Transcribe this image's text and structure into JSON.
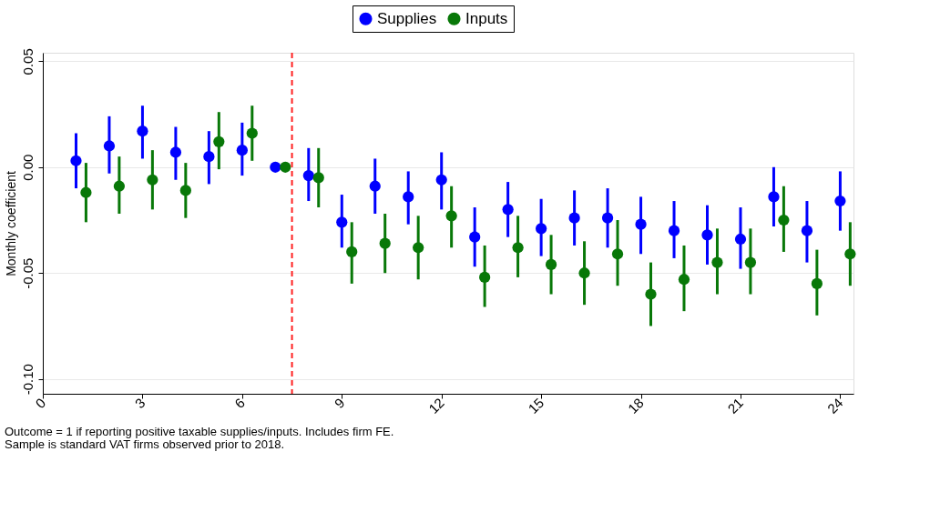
{
  "chart_data": {
    "type": "scatter",
    "ylabel": "Monthly coefficient",
    "xlim": [
      0,
      24.4
    ],
    "xticks": [
      0,
      3,
      6,
      9,
      12,
      15,
      18,
      21,
      24
    ],
    "ylim": [
      -0.107,
      0.054
    ],
    "yticks": [
      {
        "value": -0.1,
        "label": "-0.10"
      },
      {
        "value": -0.05,
        "label": "-0.05"
      },
      {
        "value": 0,
        "label": "0.00"
      },
      {
        "value": 0.05,
        "label": "0.05"
      }
    ],
    "grid": "y",
    "legend": "top",
    "marker": "circle",
    "ref_lines": [
      {
        "axis": "x",
        "value": 7.5,
        "color": "#ff2020",
        "line_style": "dashed"
      }
    ],
    "annotations": [
      "Outcome = 1 if reporting positive taxable supplies/inputs. Includes firm FE.",
      "Sample is standard VAT firms observed prior to 2018."
    ],
    "series": [
      {
        "name": "Supplies",
        "color": "#0000ff",
        "x": [
          1,
          2,
          3,
          4,
          5,
          6,
          7,
          8,
          9,
          10,
          11,
          12,
          13,
          14,
          15,
          16,
          17,
          18,
          19,
          20,
          21,
          22,
          23,
          24
        ],
        "values": [
          0.003,
          0.01,
          0.017,
          0.007,
          0.005,
          0.008,
          0,
          -0.004,
          -0.026,
          -0.009,
          -0.014,
          -0.006,
          -0.033,
          -0.02,
          -0.029,
          -0.024,
          -0.024,
          -0.027,
          -0.03,
          -0.032,
          -0.034,
          -0.014,
          -0.03,
          -0.016
        ],
        "errors": [
          [
            -0.01,
            0.016
          ],
          [
            -0.003,
            0.024
          ],
          [
            0.004,
            0.029
          ],
          [
            -0.006,
            0.019
          ],
          [
            -0.008,
            0.017
          ],
          [
            -0.004,
            0.021
          ],
          null,
          [
            -0.016,
            0.009
          ],
          [
            -0.038,
            -0.013
          ],
          [
            -0.022,
            0.004
          ],
          [
            -0.027,
            -0.002
          ],
          [
            -0.02,
            0.007
          ],
          [
            -0.047,
            -0.019
          ],
          [
            -0.033,
            -0.007
          ],
          [
            -0.042,
            -0.015
          ],
          [
            -0.037,
            -0.011
          ],
          [
            -0.038,
            -0.01
          ],
          [
            -0.041,
            -0.014
          ],
          [
            -0.043,
            -0.016
          ],
          [
            -0.046,
            -0.018
          ],
          [
            -0.048,
            -0.019
          ],
          [
            -0.028,
            0.0
          ],
          [
            -0.045,
            -0.016
          ],
          [
            -0.03,
            -0.002
          ]
        ]
      },
      {
        "name": "Inputs",
        "color": "#087808",
        "x": [
          1.3,
          2.3,
          3.3,
          4.3,
          5.3,
          6.3,
          7.3,
          8.3,
          9.3,
          10.3,
          11.3,
          12.3,
          13.3,
          14.3,
          15.3,
          16.3,
          17.3,
          18.3,
          19.3,
          20.3,
          21.3,
          22.3,
          23.3,
          24.3
        ],
        "values": [
          -0.012,
          -0.009,
          -0.006,
          -0.011,
          0.012,
          0.016,
          0,
          -0.005,
          -0.04,
          -0.036,
          -0.038,
          -0.023,
          -0.052,
          -0.038,
          -0.046,
          -0.05,
          -0.041,
          -0.06,
          -0.053,
          -0.045,
          -0.045,
          -0.025,
          -0.055,
          -0.041
        ],
        "errors": [
          [
            -0.026,
            0.002
          ],
          [
            -0.022,
            0.005
          ],
          [
            -0.02,
            0.008
          ],
          [
            -0.024,
            0.002
          ],
          [
            -0.001,
            0.026
          ],
          [
            0.003,
            0.029
          ],
          null,
          [
            -0.019,
            0.009
          ],
          [
            -0.055,
            -0.026
          ],
          [
            -0.05,
            -0.022
          ],
          [
            -0.053,
            -0.023
          ],
          [
            -0.038,
            -0.009
          ],
          [
            -0.066,
            -0.037
          ],
          [
            -0.052,
            -0.023
          ],
          [
            -0.06,
            -0.032
          ],
          [
            -0.065,
            -0.035
          ],
          [
            -0.056,
            -0.025
          ],
          [
            -0.075,
            -0.045
          ],
          [
            -0.068,
            -0.037
          ],
          [
            -0.06,
            -0.029
          ],
          [
            -0.06,
            -0.029
          ],
          [
            -0.04,
            -0.009
          ],
          [
            -0.07,
            -0.039
          ],
          [
            -0.056,
            -0.026
          ]
        ]
      }
    ]
  }
}
